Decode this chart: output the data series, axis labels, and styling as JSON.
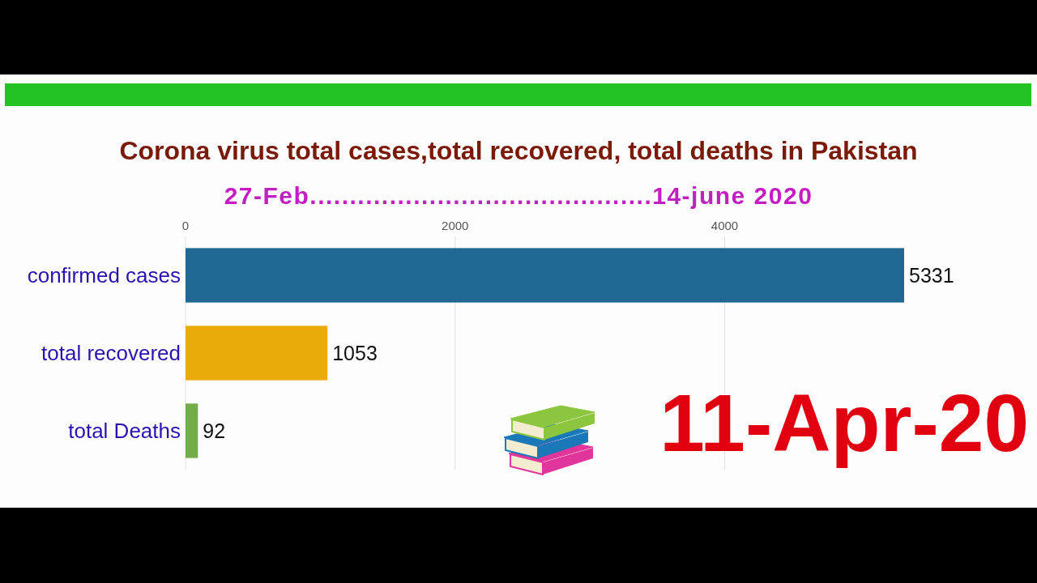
{
  "chart_data": {
    "type": "bar",
    "orientation": "horizontal",
    "title": "Corona virus total cases,total recovered, total deaths in Pakistan",
    "subtitle": "27-Feb...........................................14-june 2020",
    "categories": [
      "confirmed cases",
      "total recovered",
      "total Deaths"
    ],
    "values": [
      5331,
      1053,
      92
    ],
    "colors": [
      "#1f6894",
      "#e9ab0a",
      "#72ad4a"
    ],
    "xlim": [
      0,
      5331
    ],
    "xticks": [
      0,
      2000,
      4000
    ],
    "grid": "x",
    "data_labels": true,
    "annotations": [
      "11-Apr-20"
    ]
  }
}
